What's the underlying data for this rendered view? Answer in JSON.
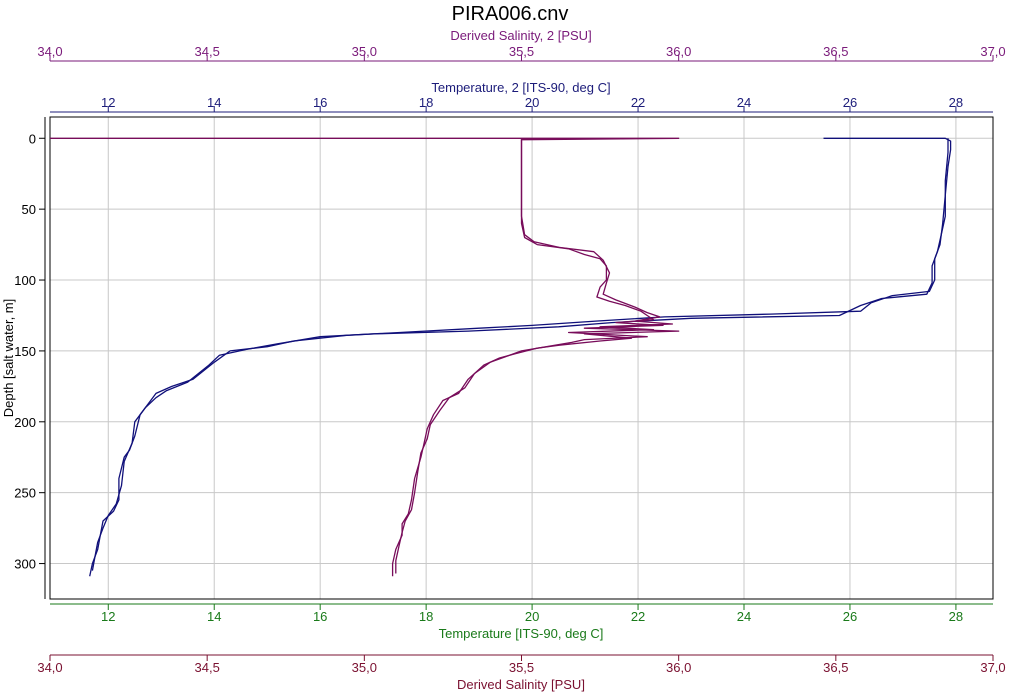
{
  "chart_data": {
    "type": "line",
    "title": "PIRA006.cnv",
    "colors": {
      "temp_top": "#1c1c7a",
      "temp_bottom": "#1a7a1a",
      "salinity_top": "#7a1a7a",
      "salinity_bottom": "#7a1030",
      "temp_line": "#10107a",
      "salinity_line": "#780c5a"
    },
    "axes": {
      "y": {
        "label": "Depth [salt water, m]",
        "range": [
          -15,
          325
        ],
        "inverted": true,
        "ticks": [
          "0",
          "50",
          "100",
          "150",
          "200",
          "250",
          "300"
        ],
        "tick_values": [
          0,
          50,
          100,
          150,
          200,
          250,
          300
        ]
      },
      "salinity_top": {
        "label": "Derived Salinity, 2 [PSU]",
        "range": [
          34.0,
          37.0
        ],
        "ticks": [
          "34,0",
          "34,5",
          "35,0",
          "35,5",
          "36,0",
          "36,5",
          "37,0"
        ],
        "tick_values": [
          34.0,
          34.5,
          35.0,
          35.5,
          36.0,
          36.5,
          37.0
        ]
      },
      "temp_top": {
        "label": "Temperature, 2 [ITS-90, deg C]",
        "range": [
          10.9,
          28.7
        ],
        "ticks": [
          "12",
          "14",
          "16",
          "18",
          "20",
          "22",
          "24",
          "26",
          "28"
        ],
        "tick_values": [
          12,
          14,
          16,
          18,
          20,
          22,
          24,
          26,
          28
        ]
      },
      "temp_bottom": {
        "label": "Temperature [ITS-90, deg C]",
        "range": [
          10.9,
          28.7
        ],
        "ticks": [
          "12",
          "14",
          "16",
          "18",
          "20",
          "22",
          "24",
          "26",
          "28"
        ],
        "tick_values": [
          12,
          14,
          16,
          18,
          20,
          22,
          24,
          26,
          28
        ]
      },
      "salinity_bottom": {
        "label": "Derived Salinity [PSU]",
        "range": [
          34.0,
          37.0
        ],
        "ticks": [
          "34,0",
          "34,5",
          "35,0",
          "35,5",
          "36,0",
          "36,5",
          "37,0"
        ],
        "tick_values": [
          34.0,
          34.5,
          35.0,
          35.5,
          36.0,
          36.5,
          37.0
        ]
      }
    },
    "series": [
      {
        "axis": "temp",
        "points": [
          [
            25.5,
            0
          ],
          [
            27.8,
            0
          ],
          [
            27.9,
            2
          ],
          [
            27.9,
            8
          ],
          [
            27.85,
            20
          ],
          [
            27.8,
            40
          ],
          [
            27.75,
            60
          ],
          [
            27.7,
            75
          ],
          [
            27.6,
            85
          ],
          [
            27.6,
            100
          ],
          [
            27.5,
            108
          ],
          [
            26.8,
            111
          ],
          [
            26.4,
            116
          ],
          [
            26.2,
            122
          ],
          [
            24.5,
            124
          ],
          [
            22.5,
            126
          ],
          [
            21.2,
            129
          ],
          [
            20.0,
            132
          ],
          [
            19.0,
            134
          ],
          [
            17.5,
            137
          ],
          [
            16.5,
            139
          ],
          [
            15.5,
            143
          ],
          [
            15.0,
            147
          ],
          [
            14.3,
            150
          ],
          [
            14.0,
            158
          ],
          [
            13.6,
            170
          ],
          [
            13.2,
            175
          ],
          [
            12.9,
            180
          ],
          [
            12.8,
            185
          ],
          [
            12.6,
            195
          ],
          [
            12.5,
            210
          ],
          [
            12.4,
            220
          ],
          [
            12.3,
            225
          ],
          [
            12.2,
            240
          ],
          [
            12.2,
            255
          ],
          [
            12.1,
            263
          ],
          [
            11.9,
            270
          ],
          [
            11.85,
            280
          ],
          [
            11.8,
            290
          ],
          [
            11.7,
            300
          ],
          [
            11.65,
            309
          ]
        ]
      },
      {
        "axis": "temp",
        "points": [
          [
            27.85,
            0
          ],
          [
            27.85,
            10
          ],
          [
            27.8,
            30
          ],
          [
            27.8,
            55
          ],
          [
            27.7,
            72
          ],
          [
            27.65,
            80
          ],
          [
            27.55,
            90
          ],
          [
            27.55,
            102
          ],
          [
            27.45,
            110
          ],
          [
            26.6,
            113
          ],
          [
            26.2,
            118
          ],
          [
            25.8,
            125
          ],
          [
            23.0,
            127
          ],
          [
            21.5,
            130
          ],
          [
            20.5,
            133
          ],
          [
            18.8,
            136
          ],
          [
            17.0,
            138
          ],
          [
            16.0,
            140
          ],
          [
            15.2,
            145
          ],
          [
            14.6,
            149
          ],
          [
            14.1,
            153
          ],
          [
            13.9,
            160
          ],
          [
            13.5,
            172
          ],
          [
            13.1,
            178
          ],
          [
            12.9,
            183
          ],
          [
            12.7,
            190
          ],
          [
            12.5,
            200
          ],
          [
            12.45,
            215
          ],
          [
            12.3,
            228
          ],
          [
            12.25,
            245
          ],
          [
            12.15,
            258
          ],
          [
            12.0,
            266
          ],
          [
            11.9,
            275
          ],
          [
            11.8,
            285
          ],
          [
            11.75,
            295
          ],
          [
            11.7,
            305
          ]
        ]
      },
      {
        "axis": "salinity",
        "points": [
          [
            34.0,
            0
          ],
          [
            36.0,
            0
          ],
          [
            35.5,
            1
          ],
          [
            35.5,
            5
          ],
          [
            35.5,
            20
          ],
          [
            35.5,
            40
          ],
          [
            35.5,
            60
          ],
          [
            35.51,
            70
          ],
          [
            35.55,
            75
          ],
          [
            35.65,
            78
          ],
          [
            35.7,
            82
          ],
          [
            35.75,
            85
          ],
          [
            35.77,
            90
          ],
          [
            35.77,
            100
          ],
          [
            35.75,
            105
          ],
          [
            35.74,
            112
          ],
          [
            35.78,
            115
          ],
          [
            35.83,
            118
          ],
          [
            35.88,
            122
          ],
          [
            35.9,
            125
          ],
          [
            35.92,
            128
          ],
          [
            35.8,
            130
          ],
          [
            35.95,
            132
          ],
          [
            35.7,
            134
          ],
          [
            36.0,
            136
          ],
          [
            35.7,
            138
          ],
          [
            35.85,
            141
          ],
          [
            35.75,
            143
          ],
          [
            35.62,
            146
          ],
          [
            35.55,
            148
          ],
          [
            35.48,
            152
          ],
          [
            35.43,
            155
          ],
          [
            35.38,
            160
          ],
          [
            35.33,
            170
          ],
          [
            35.3,
            180
          ],
          [
            35.25,
            185
          ],
          [
            35.22,
            195
          ],
          [
            35.2,
            205
          ],
          [
            35.19,
            215
          ],
          [
            35.18,
            225
          ],
          [
            35.16,
            240
          ],
          [
            35.15,
            255
          ],
          [
            35.14,
            265
          ],
          [
            35.12,
            272
          ],
          [
            35.12,
            280
          ],
          [
            35.1,
            290
          ],
          [
            35.09,
            300
          ],
          [
            35.09,
            309
          ]
        ]
      },
      {
        "axis": "salinity",
        "points": [
          [
            35.5,
            0
          ],
          [
            35.5,
            10
          ],
          [
            35.5,
            30
          ],
          [
            35.5,
            55
          ],
          [
            35.51,
            68
          ],
          [
            35.54,
            73
          ],
          [
            35.62,
            77
          ],
          [
            35.73,
            80
          ],
          [
            35.76,
            86
          ],
          [
            35.78,
            95
          ],
          [
            35.77,
            102
          ],
          [
            35.76,
            110
          ],
          [
            35.8,
            114
          ],
          [
            35.86,
            119
          ],
          [
            35.9,
            123
          ],
          [
            35.94,
            126
          ],
          [
            35.86,
            129
          ],
          [
            35.98,
            131
          ],
          [
            35.75,
            133
          ],
          [
            35.92,
            135
          ],
          [
            35.65,
            137
          ],
          [
            35.9,
            140
          ],
          [
            35.7,
            142
          ],
          [
            35.66,
            144
          ],
          [
            35.58,
            147
          ],
          [
            35.5,
            150
          ],
          [
            35.45,
            154
          ],
          [
            35.4,
            158
          ],
          [
            35.35,
            166
          ],
          [
            35.32,
            176
          ],
          [
            35.27,
            183
          ],
          [
            35.24,
            192
          ],
          [
            35.21,
            202
          ],
          [
            35.2,
            212
          ],
          [
            35.18,
            222
          ],
          [
            35.17,
            235
          ],
          [
            35.16,
            250
          ],
          [
            35.15,
            262
          ],
          [
            35.13,
            270
          ],
          [
            35.12,
            278
          ],
          [
            35.11,
            288
          ],
          [
            35.1,
            298
          ],
          [
            35.1,
            307
          ]
        ]
      }
    ]
  }
}
